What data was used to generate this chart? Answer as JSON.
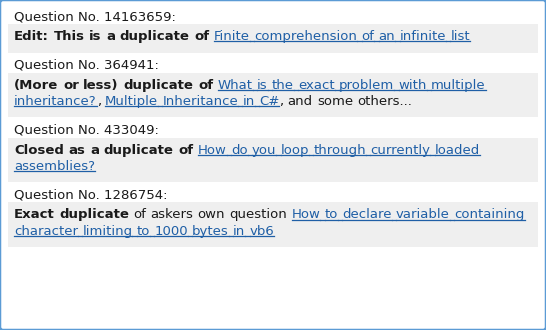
{
  "background_color": "#ffffff",
  "border_color": "#5b9bd5",
  "box_bg_color": "#efefef",
  "text_color_black": "#1a1a1a",
  "text_color_blue": "#1f5fa6",
  "sections": [
    {
      "header": "Question No. 14163659:",
      "segments": [
        {
          "text": "Edit: This is a duplicate of ",
          "bold": true,
          "blue": false,
          "link": false
        },
        {
          "text": "Finite comprehension of an infinite list",
          "bold": false,
          "blue": true,
          "link": true
        }
      ]
    },
    {
      "header": "Question No. 364941:",
      "segments": [
        {
          "text": "(More or less) duplicate of ",
          "bold": true,
          "blue": false,
          "link": false
        },
        {
          "text": "What is the exact problem with multiple inheritance?",
          "bold": false,
          "blue": true,
          "link": true
        },
        {
          "text": ", ",
          "bold": false,
          "blue": false,
          "link": false
        },
        {
          "text": "Multiple Inheritance in C#",
          "bold": false,
          "blue": true,
          "link": true
        },
        {
          "text": ", and some others...",
          "bold": false,
          "blue": false,
          "link": false
        }
      ]
    },
    {
      "header": "Question No. 433049:",
      "segments": [
        {
          "text": "Closed as a duplicate of ",
          "bold": true,
          "blue": false,
          "link": false
        },
        {
          "text": "How do you loop through currently loaded assemblies?",
          "bold": false,
          "blue": true,
          "link": true
        }
      ]
    },
    {
      "header": "Question No. 1286754:",
      "segments": [
        {
          "text": "Exact duplicate",
          "bold": true,
          "blue": false,
          "link": false
        },
        {
          "text": " of askers own question ",
          "bold": false,
          "blue": false,
          "link": false
        },
        {
          "text": "How to declare variable containing character limiting to 1000 bytes in vb6",
          "bold": false,
          "blue": true,
          "link": true
        }
      ]
    }
  ]
}
